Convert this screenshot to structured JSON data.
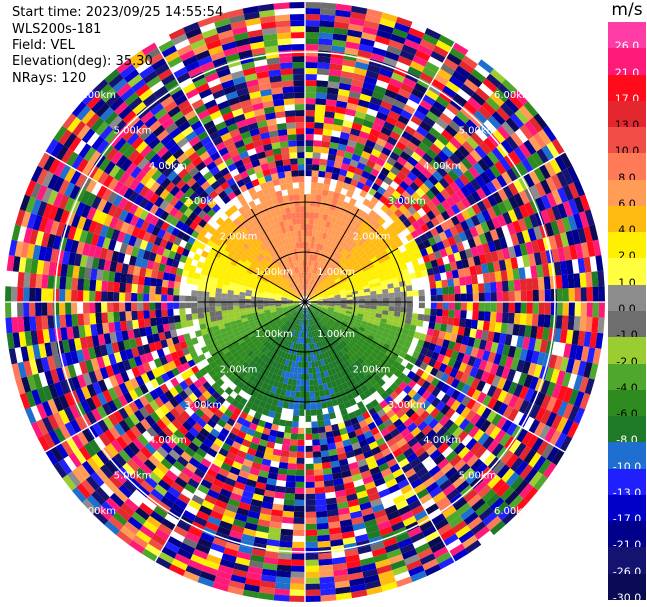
{
  "header": {
    "start_time": "Start time: 2023/09/25 14:55:54",
    "instrument": "WLS200s-181",
    "field": "Field: VEL",
    "elevation": "Elevation(deg): 35.30",
    "nrays": "NRays: 120"
  },
  "chart_data": {
    "type": "heatmap",
    "subtype": "ppi-polar",
    "field": "VEL",
    "units": "m/s",
    "n_rays": 120,
    "elevation_deg": 35.3,
    "max_range_km": 6.0,
    "range_ring_labels": [
      "1.00km",
      "2.00km",
      "3.00km",
      "4.00km",
      "5.00km",
      "6.00km"
    ],
    "range_rings_drawn_km": [
      1,
      2,
      5
    ],
    "spokes_deg": [
      0,
      30,
      60,
      90,
      120,
      150,
      180,
      210,
      240,
      270,
      300,
      330
    ],
    "clean_data_limit_km": 2.5,
    "velocity_pattern": {
      "positive_direction_deg": 0,
      "positive_max_ms": 8.0,
      "negative_max_ms": -8.0,
      "near_zero_band": "grey arc along the west-east axis"
    },
    "colorbar": {
      "label": "m/s",
      "ticks": [
        "26.0",
        "21.0",
        "17.0",
        "13.0",
        "10.0",
        "8.0",
        "6.0",
        "4.0",
        "2.0",
        "1.0",
        "0.0",
        "-1.0",
        "-2.0",
        "-4.0",
        "-6.0",
        "-8.0",
        "-10.0",
        "-13.0",
        "-17.0",
        "-21.0",
        "-26.0",
        "-30.0"
      ],
      "colors": [
        "#ff3ba5",
        "#ff1a7a",
        "#ff0b1c",
        "#e4262f",
        "#ef4d45",
        "#ff7a57",
        "#ff9d57",
        "#ffbb12",
        "#ffef00",
        "#ffff40",
        "#8c8c8c",
        "#6e6e6e",
        "#9acd32",
        "#4fa82d",
        "#2e8b1f",
        "#1f7a28",
        "#1e6fd0",
        "#2020ff",
        "#0000c8",
        "#00008b",
        "#141470",
        "#0a0a55"
      ]
    }
  }
}
